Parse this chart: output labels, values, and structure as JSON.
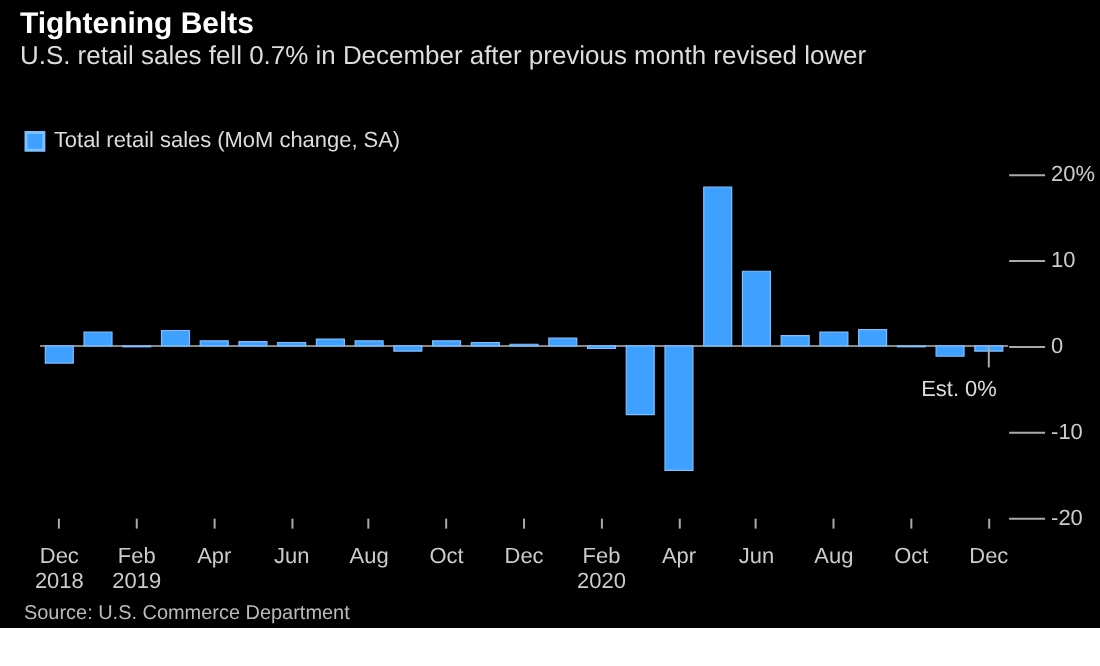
{
  "chart_data": {
    "type": "bar",
    "title": "Tightening Belts",
    "subtitle": "U.S. retail sales fell 0.7% in December after previous month revised lower",
    "categories": [
      "Dec 2018",
      null,
      "Feb 2019",
      null,
      "Apr",
      null,
      "Jun",
      null,
      "Aug",
      null,
      "Oct",
      null,
      "Dec",
      null,
      "Feb 2020",
      null,
      "Apr",
      null,
      "Jun",
      null,
      "Aug",
      null,
      "Oct",
      null,
      "Dec"
    ],
    "series": [
      {
        "name": "Total retail sales (MoM change, SA)",
        "color": "#3ea1ff",
        "values": [
          -2.0,
          1.6,
          -0.1,
          1.8,
          0.6,
          0.5,
          0.4,
          0.8,
          0.6,
          -0.6,
          0.6,
          0.4,
          0.2,
          0.9,
          -0.3,
          -8.0,
          -14.5,
          18.5,
          8.7,
          1.2,
          1.6,
          1.9,
          -0.1,
          -1.2,
          -0.6
        ]
      }
    ],
    "ylim": [
      -20,
      20
    ],
    "yticks": [
      {
        "value": 20,
        "label": "20%"
      },
      10,
      0,
      -10,
      -20
    ],
    "legend": "top left",
    "annotations": [
      "Est. 0%",
      "Source: U.S. Commerce Department"
    ]
  }
}
